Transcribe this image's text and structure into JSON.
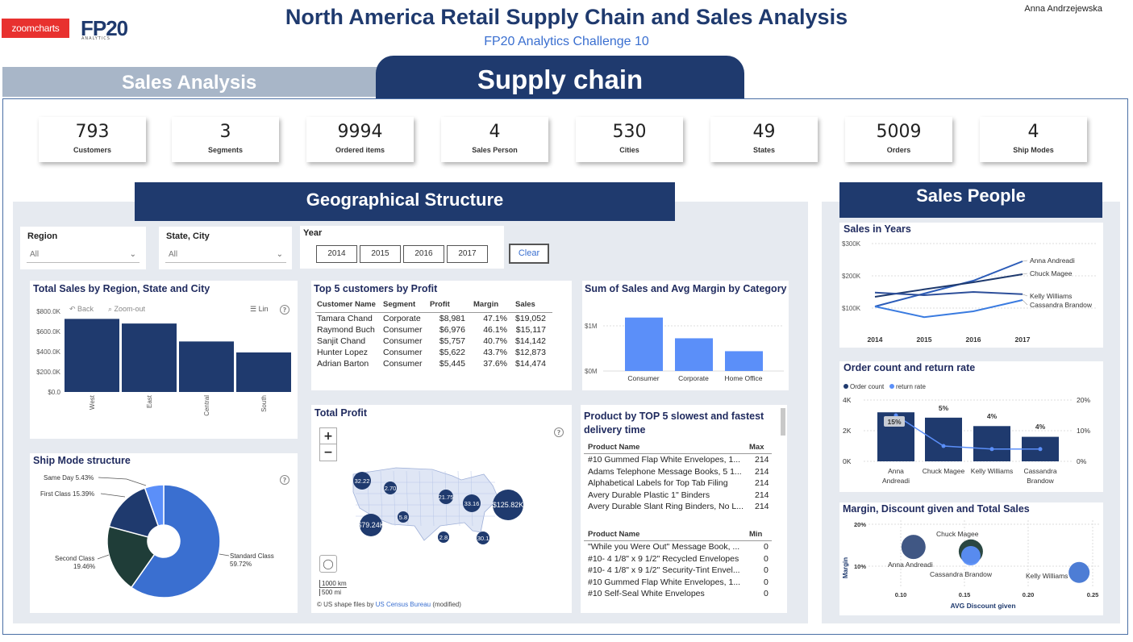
{
  "header": {
    "logo_zoomcharts": "zoomcharts",
    "logo_fp20": "FP20",
    "logo_fp20_sub": "ANALYTICS",
    "title": "North America Retail Supply Chain and Sales Analysis",
    "subtitle": "FP20 Analytics Challenge 10",
    "author": "Anna Andrzejewska"
  },
  "tabs": {
    "sales": "Sales Analysis",
    "supply": "Supply chain"
  },
  "kpis": [
    {
      "value": "793",
      "label": "Customers"
    },
    {
      "value": "3",
      "label": "Segments"
    },
    {
      "value": "9994",
      "label": "Ordered items"
    },
    {
      "value": "4",
      "label": "Sales Person"
    },
    {
      "value": "530",
      "label": "Cities"
    },
    {
      "value": "49",
      "label": "States"
    },
    {
      "value": "5009",
      "label": "Orders"
    },
    {
      "value": "4",
      "label": "Ship Modes"
    }
  ],
  "sections": {
    "geo": "Geographical Structure",
    "people": "Sales People"
  },
  "filters": {
    "region_label": "Region",
    "region_value": "All",
    "state_label": "State, City",
    "state_value": "All",
    "year_label": "Year",
    "years": [
      "2014",
      "2015",
      "2016",
      "2017"
    ],
    "clear": "Clear"
  },
  "total_sales": {
    "title": "Total Sales by Region, State and City",
    "back": "Back",
    "zoom_out": "Zoom-out",
    "lin": "Lin",
    "ticks": [
      "$800.0K",
      "$600.0K",
      "$400.0K",
      "$200.0K",
      "$0.0"
    ],
    "chart_data": {
      "type": "bar",
      "categories": [
        "West",
        "East",
        "Central",
        "South"
      ],
      "values": [
        725,
        679,
        501,
        392
      ],
      "ylim": [
        0,
        800
      ]
    }
  },
  "top5": {
    "title": "Top 5 customers by Profit",
    "headers": [
      "Customer Name",
      "Segment",
      "Profit",
      "Margin",
      "Sales"
    ],
    "rows": [
      [
        "Tamara Chand",
        "Corporate",
        "$8,981",
        "47.1%",
        "$19,052"
      ],
      [
        "Raymond Buch",
        "Consumer",
        "$6,976",
        "46.1%",
        "$15,117"
      ],
      [
        "Sanjit Chand",
        "Consumer",
        "$5,757",
        "40.7%",
        "$14,142"
      ],
      [
        "Hunter Lopez",
        "Consumer",
        "$5,622",
        "43.7%",
        "$12,873"
      ],
      [
        "Adrian Barton",
        "Consumer",
        "$5,445",
        "37.6%",
        "$14,474"
      ]
    ]
  },
  "category": {
    "title": "Sum of Sales and Avg Margin by Category",
    "ticks": [
      "$1M",
      "$0M"
    ],
    "chart_data": {
      "type": "bar",
      "categories": [
        "Consumer",
        "Corporate",
        "Home Office"
      ],
      "values": [
        1.16,
        0.71,
        0.43
      ],
      "ylim": [
        0,
        1.4
      ]
    }
  },
  "ship_mode": {
    "title": "Ship Mode structure",
    "chart_data": {
      "type": "pie",
      "labels": [
        "Standard Class",
        "Second Class",
        "First Class",
        "Same Day"
      ],
      "values": [
        59.72,
        19.46,
        15.39,
        5.43
      ],
      "label_text": [
        "Standard Class",
        "59.72%",
        "Second Class",
        "19.46%",
        "First Class 15.39%",
        "Same Day 5.43%"
      ]
    }
  },
  "total_profit": {
    "title": "Total Profit",
    "bubbles": [
      "32.22",
      "2.70",
      "21.75",
      "33.16",
      "$125.82K",
      "$79.24K",
      "5.8",
      "2.8",
      "30.1"
    ],
    "scale_km": "1000 km",
    "scale_mi": "500 mi",
    "credit_prefix": "© US shape files by",
    "credit_link": "US Census Bureau",
    "credit_suffix": "(modified)"
  },
  "delivery": {
    "title": "Product by TOP 5 slowest and fastest delivery time",
    "max_header": [
      "Product Name",
      "Max"
    ],
    "max_rows": [
      [
        "#10 Gummed Flap White Envelopes, 1...",
        "214"
      ],
      [
        "Adams Telephone Message Books, 5 1...",
        "214"
      ],
      [
        "Alphabetical Labels for Top Tab Filing",
        "214"
      ],
      [
        "Avery Durable Plastic 1\" Binders",
        "214"
      ],
      [
        "Avery Durable Slant Ring Binders, No L...",
        "214"
      ]
    ],
    "min_header": [
      "Product Name",
      "Min"
    ],
    "min_rows": [
      [
        "\"While you Were Out\" Message Book, ...",
        "0"
      ],
      [
        "#10- 4 1/8\" x 9 1/2\" Recycled Envelopes",
        "0"
      ],
      [
        "#10- 4 1/8\" x 9 1/2\" Security-Tint Envel...",
        "0"
      ],
      [
        "#10 Gummed Flap White Envelopes, 1...",
        "0"
      ],
      [
        "#10 Self-Seal White Envelopes",
        "0"
      ]
    ]
  },
  "sales_years": {
    "title": "Sales in Years",
    "ticks": [
      "$300K",
      "$200K",
      "$100K"
    ],
    "chart_data": {
      "type": "line",
      "x": [
        "2014",
        "2015",
        "2016",
        "2017"
      ],
      "ylim": [
        0,
        300
      ],
      "series": [
        {
          "name": "Anna Andreadi",
          "values": [
            105,
            145,
            185,
            245
          ]
        },
        {
          "name": "Chuck Magee",
          "values": [
            135,
            158,
            180,
            205
          ]
        },
        {
          "name": "Kelly Williams",
          "values": [
            148,
            140,
            150,
            143
          ]
        },
        {
          "name": "Cassandra Brandow",
          "values": [
            105,
            72,
            90,
            125
          ]
        }
      ]
    }
  },
  "order_count": {
    "title": "Order count and return rate",
    "legend": [
      "Order count",
      "return rate"
    ],
    "ticks_left": [
      "4K",
      "2K",
      "0K"
    ],
    "ticks_right": [
      "20%",
      "10%",
      "0%"
    ],
    "rate_labels": [
      "15%",
      "5%",
      "4%",
      "4%"
    ],
    "chart_data": {
      "type": "bar",
      "categories": [
        "Anna Andreadi",
        "Chuck Magee",
        "Kelly Williams",
        "Cassandra Brandow"
      ],
      "series": [
        {
          "name": "Order count",
          "values": [
            3.2,
            2.85,
            2.3,
            1.6
          ]
        },
        {
          "name": "return rate",
          "values": [
            15,
            5,
            4,
            4
          ]
        }
      ]
    }
  },
  "margin_discount": {
    "title": "Margin, Discount given and Total Sales",
    "ylabel": "Margin",
    "xlabel": "AVG Discount given",
    "yticks": [
      "20%",
      "10%"
    ],
    "xticks": [
      "0.10",
      "0.15",
      "0.20",
      "0.25"
    ],
    "chart_data": {
      "type": "scatter",
      "points": [
        {
          "name": "Anna Andreadi",
          "x": 0.11,
          "y": 14.6
        },
        {
          "name": "Chuck Magee",
          "x": 0.155,
          "y": 13.5
        },
        {
          "name": "Cassandra Brandow",
          "x": 0.155,
          "y": 12.5
        },
        {
          "name": "Kelly Williams",
          "x": 0.24,
          "y": 8.5
        }
      ],
      "xlim": [
        0.05,
        0.26
      ],
      "ylim": [
        5,
        22
      ]
    }
  },
  "colors": {
    "navy": "#1f3a6e",
    "blue": "#3a6fd0",
    "light": "#5b8ff9",
    "dark": "#1f3d38"
  }
}
